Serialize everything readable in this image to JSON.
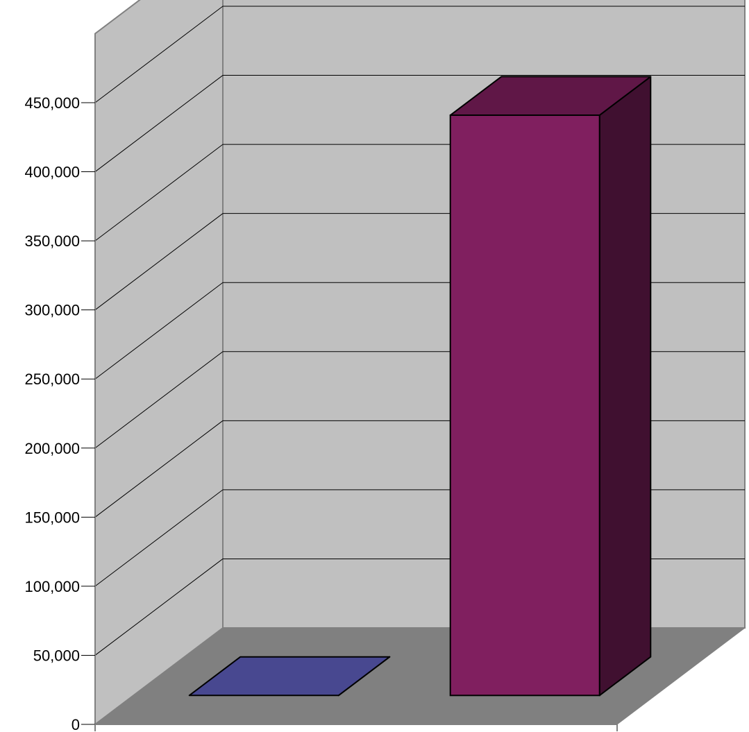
{
  "chart_data": {
    "type": "bar",
    "style": "3d-column",
    "categories": [
      "",
      ""
    ],
    "series": [
      {
        "values": [
          0,
          420000
        ]
      }
    ],
    "bar_colors": [
      "#6060C0",
      "#801F5F"
    ],
    "ylim": [
      0,
      500000
    ],
    "ytick_step": 50000,
    "yticks": [
      "0",
      "50,000",
      "100,000",
      "150,000",
      "200,000",
      "250,000",
      "300,000",
      "350,000",
      "400,000",
      "450,000"
    ],
    "grid": true,
    "legend": "none",
    "colors": {
      "wall": "#C0C0C0",
      "floor": "#808080",
      "grid": "#000000",
      "axis": "#808080"
    }
  }
}
